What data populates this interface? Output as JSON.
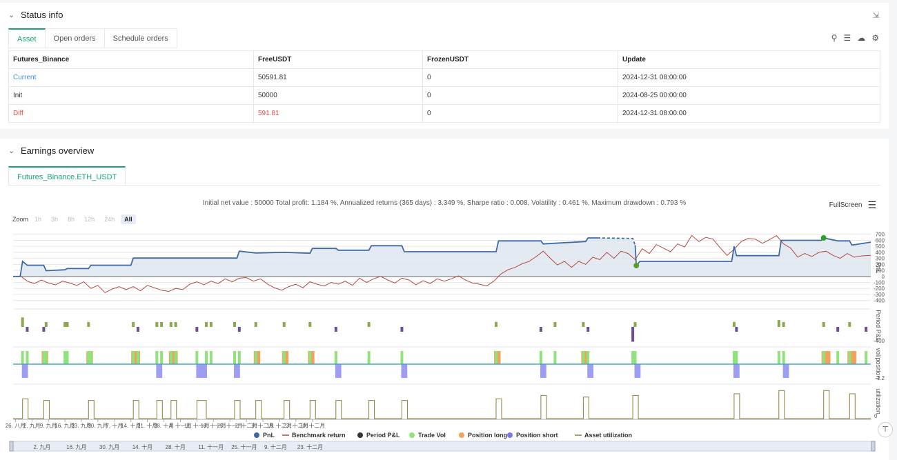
{
  "status": {
    "title": "Status info",
    "tabs": [
      "Asset",
      "Open orders",
      "Schedule orders"
    ],
    "table": {
      "headers": [
        "Futures_Binance",
        "FreeUSDT",
        "FrozenUSDT",
        "Update"
      ],
      "rows": [
        [
          "Current",
          "50591.81",
          "0",
          "2024-12-31 08:00:00"
        ],
        [
          "Init",
          "50000",
          "0",
          "2024-08-25 00:00:00"
        ],
        [
          "Diff",
          "591.81",
          "0",
          "2024-12-31 08:00:00"
        ]
      ]
    }
  },
  "earnings": {
    "title": "Earnings overview",
    "tab": "Futures_Binance.ETH_USDT",
    "summary": "Initial net value : 50000 Total profit: 1.184 %, Annualized returns (365 days) : 3.349 %, Sharpe ratio : 0.008, Volatility : 0.461 %, Maximum drawdown : 0.793 %",
    "fullscreen": "FullScreen",
    "zoom_label": "Zoom",
    "zoom_buttons": [
      "1h",
      "3h",
      "8h",
      "12h",
      "24h",
      "All"
    ]
  },
  "chart_data": {
    "type": "line",
    "x_ticks": [
      "26. 八月",
      "2. 九月",
      "9. 九月",
      "16. 九月",
      "23. 九月",
      "30. 九月",
      "7. 十月",
      "14. 十月",
      "21. 十月",
      "28. 十月",
      "4. 十一月",
      "11. 十一月",
      "18. 十一月",
      "25. 十一月",
      "2. 十二月",
      "9. 十二月",
      "16. 十二月",
      "23. 十二月",
      "30. 十二月"
    ],
    "navigator_ticks": [
      "2. 九月",
      "16. 九月",
      "30. 九月",
      "14. 十月",
      "28. 十月",
      "11. 十一月",
      "25. 十一月",
      "9. 十二月",
      "23. 十二月"
    ],
    "pnl_y_ticks": [
      700,
      600,
      500,
      400,
      300,
      200,
      100,
      0,
      -100,
      -200,
      -300,
      -400
    ],
    "pnl_ylim": [
      -450,
      720
    ],
    "pnl_axis_label": "PnL",
    "period_axis_label": "Period P&L",
    "period_tick": "-400",
    "vol_axis_label": "vol/position",
    "vol_tick": "-1.2",
    "util_axis_label": "utilization",
    "util_tick": "0",
    "legend": [
      "PnL",
      "Benchmark return",
      "Period P&L",
      "Trade Vol",
      "Position long",
      "Position short",
      "Asset utilization"
    ],
    "colors": {
      "pnl": "#3d6aa5",
      "benchmark": "#b5473d",
      "period_pos": "#8ba84e",
      "period_neg": "#6d4f96",
      "trade_vol": "#90e37a",
      "long": "#f2a25c",
      "short": "#9d9ef0",
      "util": "#8b7d3a"
    },
    "pnl": [
      [
        0,
        0
      ],
      [
        3,
        0
      ],
      [
        4,
        250
      ],
      [
        6,
        185
      ],
      [
        13,
        185
      ],
      [
        14,
        95
      ],
      [
        22,
        110
      ],
      [
        23,
        130
      ],
      [
        32,
        130
      ],
      [
        33,
        185
      ],
      [
        50,
        185
      ],
      [
        51,
        305
      ],
      [
        95,
        305
      ],
      [
        96,
        420
      ],
      [
        103,
        390
      ],
      [
        115,
        400
      ],
      [
        126,
        385
      ],
      [
        127,
        465
      ],
      [
        137,
        465
      ],
      [
        138,
        435
      ],
      [
        151,
        435
      ],
      [
        152,
        510
      ],
      [
        165,
        510
      ],
      [
        166,
        410
      ],
      [
        205,
        410
      ],
      [
        206,
        590
      ],
      [
        224,
        590
      ],
      [
        225,
        540
      ],
      [
        243,
        580
      ],
      [
        244,
        640
      ],
      [
        248,
        640
      ],
      [
        255,
        640
      ],
      [
        263,
        630
      ],
      [
        264,
        520
      ],
      [
        264.5,
        180
      ],
      [
        266,
        250
      ],
      [
        305,
        250
      ],
      [
        306,
        500
      ],
      [
        307,
        345
      ],
      [
        325,
        345
      ],
      [
        326,
        600
      ],
      [
        343,
        600
      ],
      [
        344,
        640
      ],
      [
        350,
        590
      ],
      [
        355,
        590
      ],
      [
        356,
        520
      ],
      [
        364,
        570
      ]
    ],
    "pnl_dashed_segment": [
      [
        248,
        640
      ],
      [
        263,
        630
      ],
      [
        264,
        520
      ]
    ],
    "markers": [
      {
        "x": 264.5,
        "y": 180,
        "color": "#5a9f27"
      },
      {
        "x": 344,
        "y": 640,
        "color": "#2ca02c"
      }
    ],
    "benchmark": [
      [
        3,
        10
      ],
      [
        6,
        -80
      ],
      [
        9,
        -120
      ],
      [
        12,
        -60
      ],
      [
        15,
        -110
      ],
      [
        18,
        -140
      ],
      [
        21,
        -80
      ],
      [
        24,
        -110
      ],
      [
        27,
        -150
      ],
      [
        30,
        -90
      ],
      [
        33,
        -200
      ],
      [
        36,
        -150
      ],
      [
        39,
        -270
      ],
      [
        42,
        -210
      ],
      [
        45,
        -170
      ],
      [
        48,
        -220
      ],
      [
        51,
        -170
      ],
      [
        54,
        -240
      ],
      [
        57,
        -150
      ],
      [
        60,
        -190
      ],
      [
        63,
        -230
      ],
      [
        66,
        -250
      ],
      [
        69,
        -200
      ],
      [
        72,
        -220
      ],
      [
        75,
        -130
      ],
      [
        78,
        -90
      ],
      [
        81,
        -140
      ],
      [
        84,
        -80
      ],
      [
        87,
        -120
      ],
      [
        90,
        -40
      ],
      [
        93,
        -90
      ],
      [
        96,
        -30
      ],
      [
        99,
        -20
      ],
      [
        102,
        -80
      ],
      [
        105,
        -40
      ],
      [
        108,
        -130
      ],
      [
        111,
        -190
      ],
      [
        114,
        -230
      ],
      [
        117,
        -170
      ],
      [
        120,
        -130
      ],
      [
        123,
        -190
      ],
      [
        126,
        -90
      ],
      [
        129,
        -130
      ],
      [
        132,
        -160
      ],
      [
        135,
        -100
      ],
      [
        138,
        -130
      ],
      [
        141,
        -80
      ],
      [
        144,
        -150
      ],
      [
        147,
        -30
      ],
      [
        150,
        -100
      ],
      [
        153,
        -40
      ],
      [
        156,
        0
      ],
      [
        159,
        -60
      ],
      [
        162,
        -110
      ],
      [
        165,
        -30
      ],
      [
        168,
        -60
      ],
      [
        171,
        -140
      ],
      [
        174,
        -70
      ],
      [
        177,
        -120
      ],
      [
        180,
        -40
      ],
      [
        183,
        -80
      ],
      [
        186,
        -40
      ],
      [
        189,
        10
      ],
      [
        192,
        -60
      ],
      [
        195,
        -110
      ],
      [
        198,
        -130
      ],
      [
        201,
        -160
      ],
      [
        204,
        -80
      ],
      [
        207,
        40
      ],
      [
        210,
        110
      ],
      [
        213,
        150
      ],
      [
        216,
        210
      ],
      [
        219,
        250
      ],
      [
        222,
        330
      ],
      [
        225,
        420
      ],
      [
        228,
        300
      ],
      [
        231,
        190
      ],
      [
        234,
        250
      ],
      [
        237,
        150
      ],
      [
        240,
        250
      ],
      [
        243,
        200
      ],
      [
        246,
        320
      ],
      [
        249,
        280
      ],
      [
        252,
        400
      ],
      [
        255,
        300
      ],
      [
        258,
        420
      ],
      [
        261,
        380
      ],
      [
        264,
        280
      ],
      [
        267,
        460
      ],
      [
        270,
        380
      ],
      [
        273,
        530
      ],
      [
        276,
        470
      ],
      [
        279,
        410
      ],
      [
        282,
        540
      ],
      [
        285,
        490
      ],
      [
        288,
        680
      ],
      [
        291,
        580
      ],
      [
        294,
        650
      ],
      [
        297,
        620
      ],
      [
        300,
        480
      ],
      [
        303,
        350
      ],
      [
        306,
        450
      ],
      [
        309,
        580
      ],
      [
        312,
        630
      ],
      [
        315,
        620
      ],
      [
        318,
        550
      ],
      [
        321,
        610
      ],
      [
        324,
        680
      ],
      [
        327,
        540
      ],
      [
        330,
        470
      ],
      [
        333,
        320
      ],
      [
        336,
        380
      ],
      [
        339,
        330
      ],
      [
        342,
        400
      ],
      [
        345,
        420
      ],
      [
        348,
        350
      ],
      [
        351,
        300
      ],
      [
        354,
        380
      ],
      [
        357,
        320
      ],
      [
        360,
        340
      ],
      [
        364,
        350
      ]
    ],
    "period_pnl": [
      [
        4,
        250
      ],
      [
        6,
        -50
      ],
      [
        13,
        -90
      ],
      [
        14,
        40
      ],
      [
        22,
        20
      ],
      [
        23,
        20
      ],
      [
        32,
        30
      ],
      [
        51,
        120
      ],
      [
        53,
        -40
      ],
      [
        61,
        20
      ],
      [
        63,
        20
      ],
      [
        67,
        30
      ],
      [
        69,
        20
      ],
      [
        78,
        -50
      ],
      [
        82,
        40
      ],
      [
        84,
        20
      ],
      [
        94,
        120
      ],
      [
        96,
        -30
      ],
      [
        103,
        20
      ],
      [
        115,
        10
      ],
      [
        126,
        90
      ],
      [
        137,
        -30
      ],
      [
        151,
        75
      ],
      [
        165,
        -100
      ],
      [
        205,
        130
      ],
      [
        224,
        -40
      ],
      [
        230,
        30
      ],
      [
        242,
        70
      ],
      [
        244,
        -40
      ],
      [
        263,
        -390
      ],
      [
        264,
        20
      ],
      [
        306,
        130
      ],
      [
        307,
        -80
      ],
      [
        325,
        180
      ],
      [
        327,
        20
      ],
      [
        344,
        40
      ],
      [
        350,
        -40
      ],
      [
        355,
        60
      ],
      [
        362,
        -30
      ]
    ],
    "trade_vol": [
      [
        4,
        1
      ],
      [
        6,
        1
      ],
      [
        13,
        1
      ],
      [
        14,
        1
      ],
      [
        22,
        1
      ],
      [
        23,
        1
      ],
      [
        32,
        1
      ],
      [
        33,
        1
      ],
      [
        51,
        1
      ],
      [
        53,
        1
      ],
      [
        61,
        1
      ],
      [
        63,
        1
      ],
      [
        67,
        1
      ],
      [
        69,
        1
      ],
      [
        78,
        1
      ],
      [
        82,
        1
      ],
      [
        84,
        1
      ],
      [
        94,
        1
      ],
      [
        96,
        1
      ],
      [
        103,
        1
      ],
      [
        115,
        1
      ],
      [
        126,
        1
      ],
      [
        137,
        1
      ],
      [
        151,
        1
      ],
      [
        165,
        1
      ],
      [
        205,
        1
      ],
      [
        224,
        1
      ],
      [
        230,
        1
      ],
      [
        242,
        1
      ],
      [
        244,
        1
      ],
      [
        263,
        1
      ],
      [
        264,
        1
      ],
      [
        306,
        1
      ],
      [
        307,
        1
      ],
      [
        325,
        1
      ],
      [
        327,
        1
      ],
      [
        344,
        1
      ],
      [
        350,
        1
      ],
      [
        355,
        1
      ],
      [
        362,
        1
      ]
    ],
    "long_spans": [
      [
        13,
        14
      ],
      [
        32,
        33
      ],
      [
        51,
        53
      ],
      [
        67,
        69
      ],
      [
        103,
        104
      ],
      [
        115,
        116
      ],
      [
        126,
        127
      ],
      [
        205,
        206
      ],
      [
        242,
        243
      ],
      [
        344,
        346
      ],
      [
        355,
        357
      ]
    ],
    "short_spans": [
      [
        4,
        6
      ],
      [
        61,
        63
      ],
      [
        78,
        82
      ],
      [
        94,
        96
      ],
      [
        137,
        139
      ],
      [
        165,
        167
      ],
      [
        224,
        226
      ],
      [
        244,
        246
      ],
      [
        264,
        266
      ],
      [
        306,
        308
      ],
      [
        327,
        329
      ]
    ],
    "utilization": [
      [
        4,
        6
      ],
      [
        13,
        14
      ],
      [
        32,
        33
      ],
      [
        51,
        53
      ],
      [
        61,
        63
      ],
      [
        67,
        69
      ],
      [
        78,
        82
      ],
      [
        94,
        96
      ],
      [
        103,
        104
      ],
      [
        115,
        116
      ],
      [
        126,
        127
      ],
      [
        137,
        139
      ],
      [
        151,
        152
      ],
      [
        165,
        167
      ],
      [
        205,
        206
      ],
      [
        224,
        226
      ],
      [
        242,
        244
      ],
      [
        263,
        265
      ],
      [
        306,
        308
      ],
      [
        325,
        327
      ],
      [
        344,
        346
      ],
      [
        355,
        357
      ]
    ],
    "utilization_levels": [
      0.6,
      0.55,
      0.55,
      0.55,
      0.55,
      0.55,
      0.55,
      0.55,
      0.55,
      0.55,
      0.55,
      0.55,
      0.55,
      0.55,
      0.6,
      0.7,
      0.65,
      0.7,
      0.75,
      0.85,
      0.85,
      0.75
    ]
  }
}
